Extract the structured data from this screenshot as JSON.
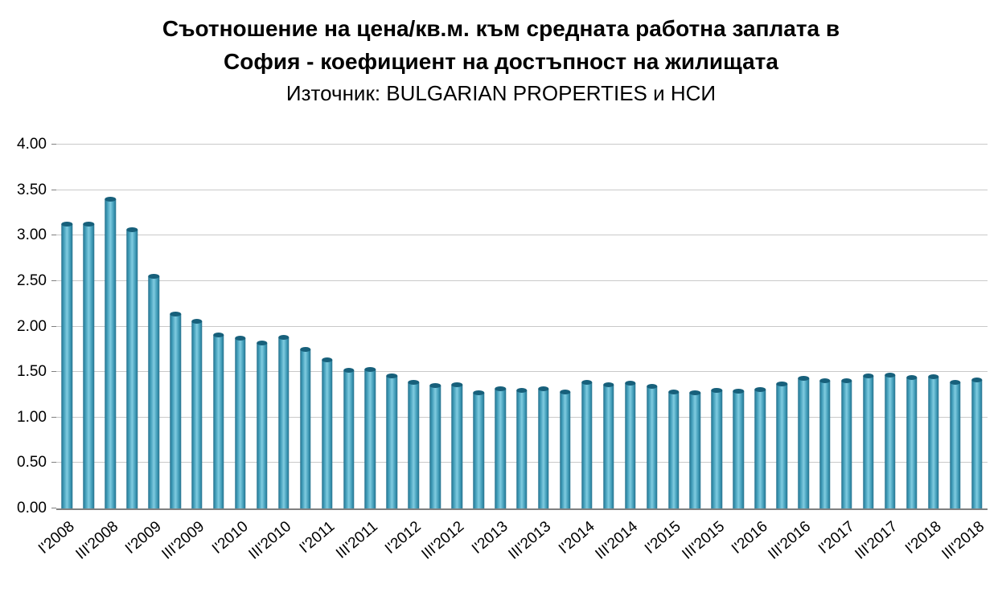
{
  "chart_data": {
    "type": "bar",
    "title": "Съотношение на цена/кв.м. към средната работна заплата в София - коефициент на достъпност на жилищата",
    "title_lines": [
      "Съотношение на цена/кв.м. към средната работна заплата в",
      "София - коефициент на достъпност на жилищата"
    ],
    "subtitle": "Източник: BULGARIAN PROPERTIES и НСИ",
    "ylabel": "",
    "xlabel": "",
    "ylim": [
      0,
      4
    ],
    "ytick_step": 0.5,
    "y_ticks": [
      "0.00",
      "0.50",
      "1.00",
      "1.50",
      "2.00",
      "2.50",
      "3.00",
      "3.50",
      "4.00"
    ],
    "grid": true,
    "legend": "none",
    "label_every": 2,
    "x_labels": [
      "I'2008",
      "III'2008",
      "I'2009",
      "III'2009",
      "I'2010",
      "III'2010",
      "I'2011",
      "III'2011",
      "I'2012",
      "III'2012",
      "I'2013",
      "III'2013",
      "I'2014",
      "III'2014",
      "I'2015",
      "III'2015",
      "I'2016",
      "III'2016",
      "I'2017",
      "III'2017",
      "I'2018",
      "III'2018"
    ],
    "values": [
      3.13,
      3.13,
      3.4,
      3.06,
      2.55,
      2.14,
      2.06,
      1.91,
      1.87,
      1.82,
      1.88,
      1.75,
      1.63,
      1.52,
      1.53,
      1.46,
      1.39,
      1.35,
      1.36,
      1.27,
      1.32,
      1.3,
      1.32,
      1.28,
      1.39,
      1.36,
      1.38,
      1.34,
      1.28,
      1.27,
      1.3,
      1.29,
      1.31,
      1.37,
      1.43,
      1.4,
      1.4,
      1.46,
      1.47,
      1.44,
      1.45,
      1.39,
      1.41
    ],
    "colors": {
      "bar_edge": "#25718D",
      "bar_mid": "#3E9AB6",
      "bar_center": "#7FCBE0",
      "bar_cap": "#17607B",
      "grid": "#C9C9C9",
      "axis": "#808080",
      "text": "#000000"
    }
  }
}
